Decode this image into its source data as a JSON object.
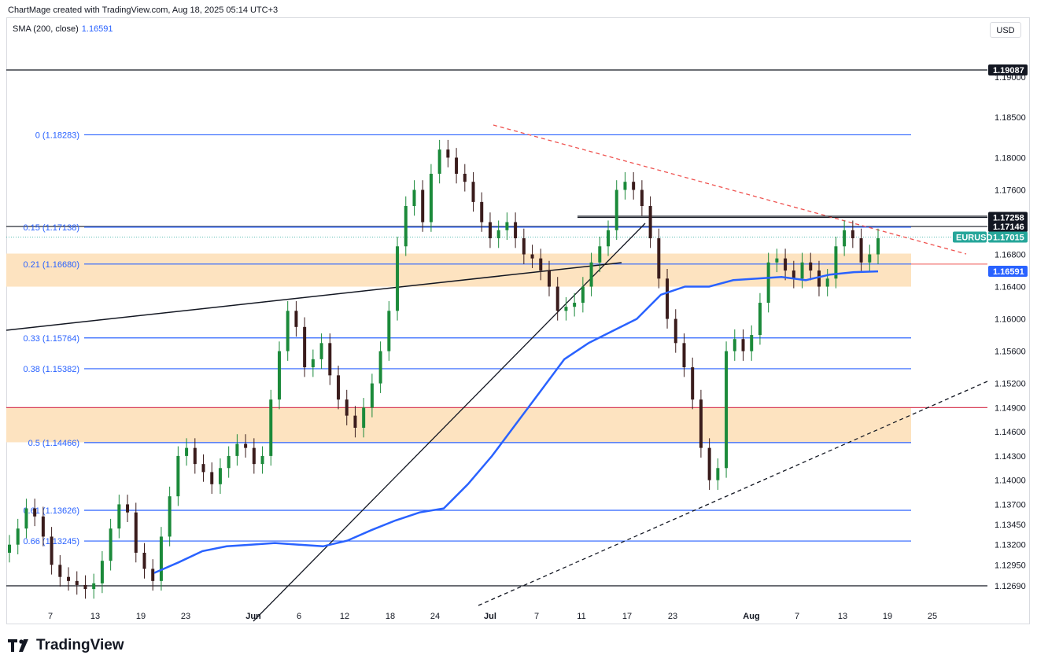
{
  "header": {
    "credit": "ChartMage created with TradingView.com, Aug 18, 2025 05:14 UTC+3",
    "indicator": "SMA (200, close)",
    "indicator_value": "1.16591",
    "currency_button": "USD",
    "brand": "TradingView"
  },
  "colors": {
    "candle_up": "#1b8a3a",
    "candle_down": "#3a1c1c",
    "sma": "#2962ff",
    "fib": "#2962ff",
    "zone": "#fde3c0",
    "resistance_red": "#ef5350",
    "price_tag_bg": "#26a69a"
  },
  "chart_data": {
    "type": "candlestick",
    "symbol": "EURUSD",
    "last_price": 1.17015,
    "yrange": [
      1.1255,
      1.1965
    ],
    "y_ticks": [
      "1.19000",
      "1.18500",
      "1.18000",
      "1.17600",
      "1.16800",
      "1.16400",
      "1.16000",
      "1.15600",
      "1.15200",
      "1.14900",
      "1.14600",
      "1.14300",
      "1.14000",
      "1.13700",
      "1.13450",
      "1.13200",
      "1.12950",
      "1.12690"
    ],
    "x_ticks": [
      {
        "label": "7",
        "bold": false
      },
      {
        "label": "13",
        "bold": false
      },
      {
        "label": "19",
        "bold": false
      },
      {
        "label": "23",
        "bold": false
      },
      {
        "label": "Jun",
        "bold": true
      },
      {
        "label": "6",
        "bold": false
      },
      {
        "label": "12",
        "bold": false
      },
      {
        "label": "18",
        "bold": false
      },
      {
        "label": "24",
        "bold": false
      },
      {
        "label": "Jul",
        "bold": true
      },
      {
        "label": "7",
        "bold": false
      },
      {
        "label": "11",
        "bold": false
      },
      {
        "label": "17",
        "bold": false
      },
      {
        "label": "23",
        "bold": false
      },
      {
        "label": "Aug",
        "bold": true
      },
      {
        "label": "7",
        "bold": false
      },
      {
        "label": "13",
        "bold": false
      },
      {
        "label": "19",
        "bold": false
      },
      {
        "label": "25",
        "bold": false
      }
    ],
    "fib_levels": [
      {
        "label": "0 (1.18283)",
        "value": 1.18283
      },
      {
        "label": "0.15 (1.17138)",
        "value": 1.17138
      },
      {
        "label": "0.21 (1.16680)",
        "value": 1.1668
      },
      {
        "label": "0.33 (1.15764)",
        "value": 1.15764
      },
      {
        "label": "0.38 (1.15382)",
        "value": 1.15382
      },
      {
        "label": "0.5 (1.14466)",
        "value": 1.14466
      },
      {
        "label": "0.61 (1.13626)",
        "value": 1.13626
      },
      {
        "label": "0.66 (1.13245)",
        "value": 1.13245
      }
    ],
    "horizontal_lines": [
      {
        "value": 1.19087,
        "label": "1.19087"
      },
      {
        "value": 1.17258,
        "label": "1.17258"
      },
      {
        "value": 1.17146,
        "label": "1.17146"
      },
      {
        "value": 1.1269,
        "label": ""
      }
    ],
    "red_level": 1.149,
    "zones": [
      {
        "from": 1.164,
        "to": 1.1681
      },
      {
        "from": 1.1447,
        "to": 1.149
      }
    ],
    "price_tags": [
      {
        "label": "1.19087",
        "value": 1.19087,
        "style": "dark"
      },
      {
        "label": "1.17258",
        "value": 1.17258,
        "style": "dark"
      },
      {
        "label": "1.17146",
        "value": 1.17146,
        "style": "dark"
      },
      {
        "label": "1.17015",
        "value": 1.17015,
        "style": "green",
        "name": "EURUSD"
      },
      {
        "label": "1.16591",
        "value": 1.16591,
        "style": "blue"
      }
    ],
    "sma_values": [
      1.1285,
      1.1298,
      1.1312,
      1.1318,
      1.132,
      1.1322,
      1.132,
      1.1318,
      1.1325,
      1.1338,
      1.135,
      1.136,
      1.1365,
      1.1395,
      1.143,
      1.147,
      1.151,
      1.155,
      1.157,
      1.1585,
      1.16,
      1.163,
      1.164,
      1.164,
      1.1648,
      1.165,
      1.1652,
      1.1648,
      1.1655,
      1.1658,
      1.1659
    ],
    "candle_closes": [
      1.132,
      1.134,
      1.1365,
      1.1355,
      1.133,
      1.1295,
      1.128,
      1.1275,
      1.127,
      1.1265,
      1.1272,
      1.13,
      1.134,
      1.137,
      1.136,
      1.131,
      1.129,
      1.1275,
      1.133,
      1.138,
      1.143,
      1.144,
      1.142,
      1.141,
      1.1395,
      1.1415,
      1.143,
      1.1445,
      1.144,
      1.142,
      1.143,
      1.15,
      1.156,
      1.161,
      1.159,
      1.154,
      1.155,
      1.157,
      1.153,
      1.15,
      1.148,
      1.1465,
      1.149,
      1.152,
      1.156,
      1.161,
      1.169,
      1.174,
      1.176,
      1.172,
      1.178,
      1.181,
      1.18,
      1.178,
      1.177,
      1.1745,
      1.172,
      1.17,
      1.171,
      1.172,
      1.17,
      1.168,
      1.1675,
      1.166,
      1.164,
      1.161,
      1.1615,
      1.162,
      1.164,
      1.167,
      1.169,
      1.171,
      1.176,
      1.177,
      1.176,
      1.174,
      1.17,
      1.165,
      1.16,
      1.157,
      1.154,
      1.15,
      1.144,
      1.14,
      1.1415,
      1.156,
      1.1575,
      1.156,
      1.158,
      1.162,
      1.167,
      1.1675,
      1.166,
      1.165,
      1.167,
      1.166,
      1.164,
      1.165,
      1.169,
      1.171,
      1.17,
      1.167,
      1.168,
      1.17
    ]
  }
}
